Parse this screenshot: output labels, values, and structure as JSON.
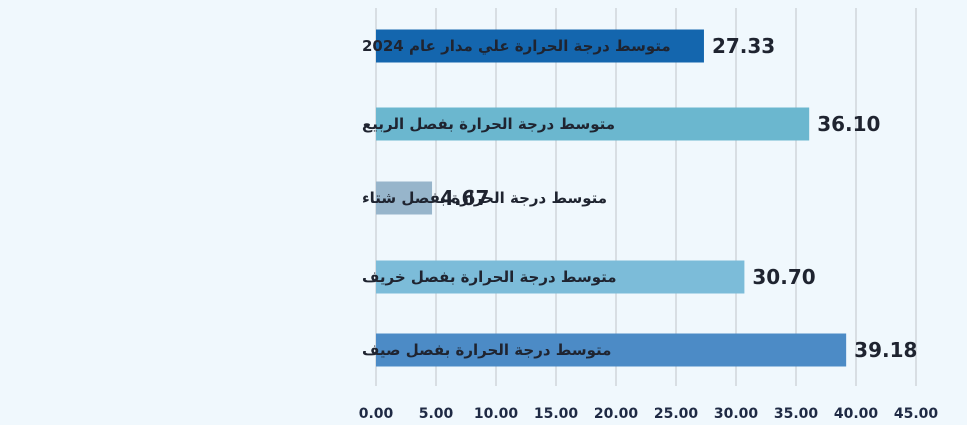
{
  "chart_data": {
    "type": "bar",
    "orientation": "horizontal",
    "title": "",
    "xlabel": "",
    "ylabel": "",
    "xlim": [
      0,
      45
    ],
    "tick_step": 5,
    "tick_labels": [
      "0.00",
      "5.00",
      "10.00",
      "15.00",
      "20.00",
      "25.00",
      "30.00",
      "35.00",
      "40.00",
      "45.00"
    ],
    "grid": true,
    "legend": "none",
    "categories": [
      "متوسط درجة الحرارة علي مدار عام 2024",
      "متوسط درجة الحرارة بفصل الربيع",
      "متوسط درجة الحرارة بفصل شتاء",
      "متوسط درجة الحرارة بفصل خريف",
      "متوسط درجة الحرارة بفصل صيف"
    ],
    "values": [
      27.33,
      36.1,
      4.67,
      30.7,
      39.18
    ],
    "value_labels": [
      "27.33",
      "36.10",
      "4.67",
      "30.70",
      "39.18"
    ],
    "bar_colors": [
      "#1466ae",
      "#6bb7cf",
      "#97b5cb",
      "#7cbcd9",
      "#4c8bc6"
    ]
  }
}
